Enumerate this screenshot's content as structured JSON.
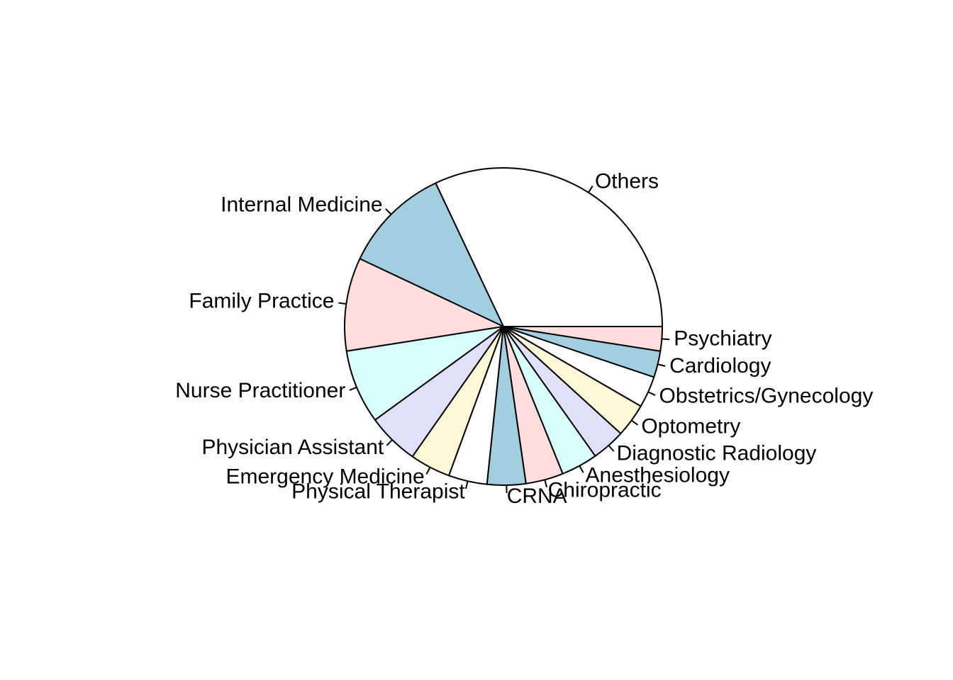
{
  "chart_data": {
    "type": "pie",
    "title": "",
    "start_angle_deg": 0,
    "direction": "counterclockwise",
    "slices": [
      {
        "label": "Others",
        "value": 31.0,
        "color": "#ffffff"
      },
      {
        "label": "Internal Medicine",
        "value": 10.6,
        "color": "#a1cfe0"
      },
      {
        "label": "Family Practice",
        "value": 9.2,
        "color": "#ffdedd"
      },
      {
        "label": "Nurse Practitioner",
        "value": 7.3,
        "color": "#d8fefe"
      },
      {
        "label": "Physician Assistant",
        "value": 5.1,
        "color": "#e0e0f8"
      },
      {
        "label": "Emergency Medicine",
        "value": 4.0,
        "color": "#fff7d8"
      },
      {
        "label": "Physical Therapist",
        "value": 3.8,
        "color": "#ffffff"
      },
      {
        "label": "CRNA",
        "value": 3.8,
        "color": "#a1cfe0"
      },
      {
        "label": "Chiropractic",
        "value": 3.7,
        "color": "#ffdedd"
      },
      {
        "label": "Anesthesiology",
        "value": 3.6,
        "color": "#d8fefe"
      },
      {
        "label": "Diagnostic Radiology",
        "value": 3.3,
        "color": "#e0e0f8"
      },
      {
        "label": "Optometry",
        "value": 3.3,
        "color": "#fff7d8"
      },
      {
        "label": "Obstetrics/Gynecology",
        "value": 3.1,
        "color": "#ffffff"
      },
      {
        "label": "Cardiology",
        "value": 2.6,
        "color": "#a1cfe0"
      },
      {
        "label": "Psychiatry",
        "value": 2.4,
        "color": "#ffdedd"
      }
    ]
  }
}
